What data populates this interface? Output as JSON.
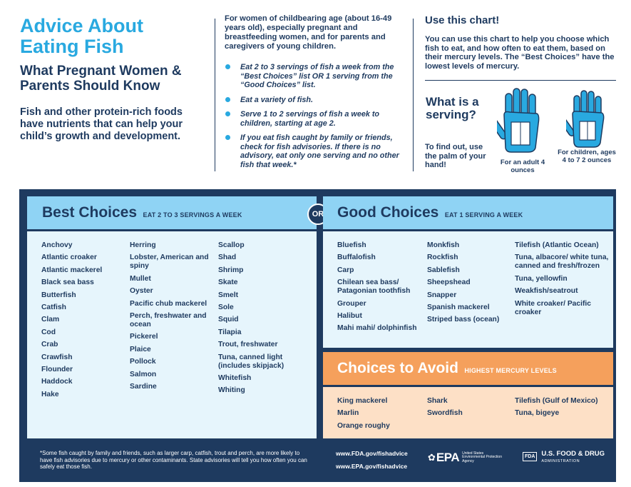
{
  "header": {
    "title": "Advice About Eating Fish",
    "subtitle": "What Pregnant Women & Parents Should Know",
    "lead": "Fish and other protein-rich foods have nutrients that can help your child’s growth and development.",
    "audience": "For women of childbearing age (about 16-49 years old), especially pregnant and breastfeeding women, and for parents and caregivers of young children.",
    "tips": [
      "Eat 2 to 3 servings of fish a week from the “Best Choices” list OR 1 serving from the “Good Choices” list.",
      "Eat a variety of fish.",
      "Serve 1 to 2 servings of fish a week to children, starting at age 2.",
      "If you eat fish caught by family or friends, check for fish advisories. If there is no advisory, eat only one serving and no other fish that week.*"
    ],
    "use_chart_title": "Use this chart!",
    "use_chart_text": "You can use this chart to help you choose which fish to eat, and how often to eat them, based on their mercury levels. The “Best Choices” have the lowest levels of mercury.",
    "serving_question": "What is a serving?",
    "serving_hint": "To find out, use the palm of your hand!",
    "adult_caption": "For an adult 4 ounces",
    "child_caption": "For children, ages 4 to 7 2 ounces",
    "icon_adult": "adult-hand-icon",
    "icon_child": "child-hand-icon"
  },
  "best": {
    "title": "Best Choices",
    "subtitle": "EAT 2 TO 3 SERVINGS A WEEK",
    "col1": [
      "Anchovy",
      "Atlantic croaker",
      "Atlantic mackerel",
      "Black sea bass",
      "Butterfish",
      "Catfish",
      "Clam",
      "Cod",
      "Crab",
      "Crawfish",
      "Flounder",
      "Haddock",
      "Hake"
    ],
    "col2": [
      "Herring",
      "Lobster, American and spiny",
      "Mullet",
      "Oyster",
      "Pacific chub mackerel",
      "Perch, freshwater and ocean",
      "Pickerel",
      "Plaice",
      "Pollock",
      "Salmon",
      "Sardine"
    ],
    "col3": [
      "Scallop",
      "Shad",
      "Shrimp",
      "Skate",
      "Smelt",
      "Sole",
      "Squid",
      "Tilapia",
      "Trout, freshwater",
      "Tuna, canned light (includes skipjack)",
      "Whitefish",
      "Whiting"
    ]
  },
  "or_label": "OR",
  "good": {
    "title": "Good Choices",
    "subtitle": "EAT 1 SERVING A WEEK",
    "col1": [
      "Bluefish",
      "Buffalofish",
      "Carp",
      "Chilean sea bass/ Patagonian toothfish",
      "Grouper",
      "Halibut",
      "Mahi mahi/ dolphinfish"
    ],
    "col2": [
      "Monkfish",
      "Rockfish",
      "Sablefish",
      "Sheepshead",
      "Snapper",
      "Spanish mackerel",
      "Striped bass (ocean)"
    ],
    "col3": [
      "Tilefish (Atlantic Ocean)",
      "Tuna, albacore/ white tuna, canned and fresh/frozen",
      "Tuna, yellowfin",
      "Weakfish/seatrout",
      "White croaker/ Pacific croaker"
    ]
  },
  "avoid": {
    "title": "Choices to Avoid",
    "subtitle": "HIGHEST MERCURY LEVELS",
    "col1": [
      "King mackerel",
      "Marlin",
      "Orange roughy"
    ],
    "col2": [
      "Shark",
      "Swordfish"
    ],
    "col3": [
      "Tilefish (Gulf of Mexico)",
      "Tuna, bigeye"
    ]
  },
  "footer": {
    "footnote": "*Some fish caught by family and friends, such as larger carp, catfish, trout and perch, are more likely to have fish advisories due to mercury or other contaminants. State advisories will tell you how often you can safely eat those fish.",
    "url_fda": "www.FDA.gov/fishadvice",
    "url_epa": "www.EPA.gov/fishadvice",
    "epa_logo": "EPA",
    "epa_agency": "United States Environmental Protection Agency",
    "fda_box": "FDA",
    "fda_name": "U.S. FOOD & DRUG",
    "fda_admin": "ADMINISTRATION"
  },
  "colors": {
    "title_blue": "#29a9e0",
    "navy": "#1e3a5f",
    "header_blue": "#8fd3f4",
    "list_blue": "#e6f5fc",
    "avoid_orange": "#f5a05c",
    "avoid_peach": "#fde0c6"
  }
}
